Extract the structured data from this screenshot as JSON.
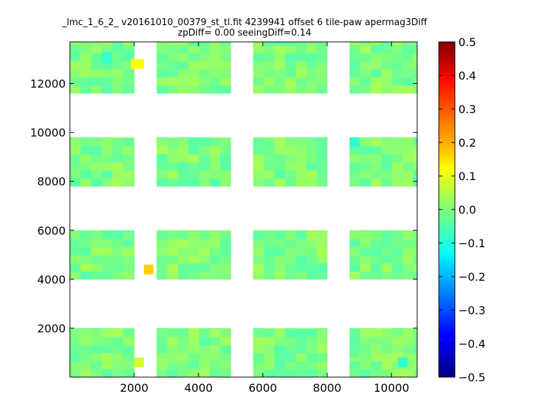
{
  "chart_data": {
    "type": "heatmap",
    "title": "_lmc_1_6_2_ v20161010_00379_st_tl.fit 4239941 offset 6 tile-paw apermag3Diff",
    "subtitle": "zpDiff= 0.00 seeingDiff=0.14",
    "xlabel": "",
    "ylabel": "",
    "xlim": [
      0,
      10800
    ],
    "ylim": [
      0,
      13700
    ],
    "x_ticks": [
      2000,
      4000,
      6000,
      8000,
      10000
    ],
    "y_ticks": [
      2000,
      4000,
      6000,
      8000,
      10000,
      12000
    ],
    "colorbar": {
      "colormap": "jet",
      "vmin": -0.5,
      "vmax": 0.5,
      "ticks": [
        0.5,
        0.4,
        0.3,
        0.2,
        0.1,
        0.0,
        -0.1,
        -0.2,
        -0.3,
        -0.4,
        -0.5
      ],
      "tick_labels": [
        "0.5",
        "0.4",
        "0.3",
        "0.2",
        "0.1",
        "0.0",
        "−0.1",
        "−0.2",
        "−0.3",
        "−0.4",
        "−0.5"
      ]
    },
    "chips": [
      {
        "x0": 0,
        "x1": 2000,
        "y0": 0,
        "y1": 2000
      },
      {
        "x0": 2700,
        "x1": 5000,
        "y0": 0,
        "y1": 2000
      },
      {
        "x0": 5700,
        "x1": 8000,
        "y0": 0,
        "y1": 2000
      },
      {
        "x0": 8700,
        "x1": 10800,
        "y0": 0,
        "y1": 2000
      },
      {
        "x0": 0,
        "x1": 2000,
        "y0": 4000,
        "y1": 6000
      },
      {
        "x0": 2700,
        "x1": 5000,
        "y0": 4000,
        "y1": 6000
      },
      {
        "x0": 5700,
        "x1": 8000,
        "y0": 4000,
        "y1": 6000
      },
      {
        "x0": 8700,
        "x1": 10800,
        "y0": 4000,
        "y1": 6000
      },
      {
        "x0": 0,
        "x1": 2000,
        "y0": 7800,
        "y1": 9800
      },
      {
        "x0": 2700,
        "x1": 5000,
        "y0": 7800,
        "y1": 9800
      },
      {
        "x0": 5700,
        "x1": 8000,
        "y0": 7800,
        "y1": 9800
      },
      {
        "x0": 8700,
        "x1": 10800,
        "y0": 7800,
        "y1": 9800
      },
      {
        "x0": 0,
        "x1": 2000,
        "y0": 11600,
        "y1": 13700
      },
      {
        "x0": 2700,
        "x1": 5000,
        "y0": 11600,
        "y1": 13700
      },
      {
        "x0": 5700,
        "x1": 8000,
        "y0": 11600,
        "y1": 13700
      },
      {
        "x0": 8700,
        "x1": 10800,
        "y0": 11600,
        "y1": 13700
      }
    ],
    "cells": [
      {
        "x0": 1900,
        "x1": 2300,
        "y0": 12600,
        "y1": 13000,
        "v": 0.12
      },
      {
        "x0": 2300,
        "x1": 2600,
        "y0": 4200,
        "y1": 4600,
        "v": 0.17
      },
      {
        "x0": 2000,
        "x1": 2300,
        "y0": 400,
        "y1": 800,
        "v": 0.08
      },
      {
        "x0": 1000,
        "x1": 1300,
        "y0": 12800,
        "y1": 13300,
        "v": -0.07
      },
      {
        "x0": 8700,
        "x1": 9000,
        "y0": 9400,
        "y1": 9800,
        "v": -0.08
      },
      {
        "x0": 10200,
        "x1": 10500,
        "y0": 400,
        "y1": 800,
        "v": -0.08
      },
      {
        "x0": 8700,
        "x1": 9000,
        "y0": 800,
        "y1": 1200,
        "v": -0.03
      }
    ]
  }
}
